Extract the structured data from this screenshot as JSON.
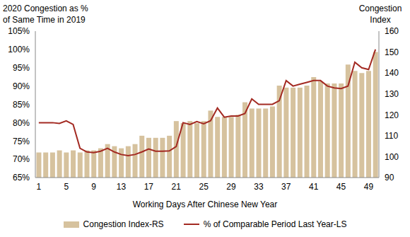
{
  "chart_data": {
    "type": "combo",
    "x_label": "Working Days After Chinese New Year",
    "y_label": "2020 Congestion as %\nof Same Time in 2019",
    "y2_label": "Congestion\nIndex",
    "categories": [
      "1",
      null,
      null,
      null,
      "5",
      null,
      null,
      null,
      "9",
      null,
      null,
      null,
      "13",
      null,
      null,
      null,
      "17",
      null,
      null,
      null,
      "21",
      null,
      null,
      null,
      "25",
      null,
      null,
      null,
      "29",
      null,
      null,
      null,
      "33",
      null,
      null,
      null,
      "37",
      null,
      null,
      null,
      "41",
      null,
      null,
      null,
      "45",
      null,
      null,
      null,
      "49",
      null
    ],
    "series": [
      {
        "name": "Congestion Index-RS",
        "type": "bar",
        "color": "#d6c29e",
        "axis": "y2",
        "values": [
          102,
          102,
          102,
          103,
          102,
          103,
          102,
          103,
          103,
          104,
          106,
          105,
          104,
          105,
          106,
          110,
          109,
          109,
          109,
          110,
          117,
          116,
          117,
          116,
          117,
          122,
          119,
          119,
          119,
          120,
          126,
          123,
          123,
          123,
          124,
          134,
          133,
          133,
          133,
          134,
          138,
          136,
          135,
          135,
          135,
          144,
          141,
          140,
          141,
          150
        ]
      },
      {
        "name": "% of Comparable Period Last Year-LS",
        "type": "line",
        "color": "#a32a22",
        "values": [
          80,
          80,
          80,
          79.8,
          80.5,
          79.5,
          73,
          72,
          71.8,
          72.2,
          73,
          72,
          71.3,
          71,
          71.3,
          72,
          72.8,
          72.2,
          72.2,
          72.3,
          73.5,
          80,
          79.5,
          80.3,
          79.7,
          80.5,
          84,
          81.5,
          81.8,
          81.8,
          82.5,
          86.5,
          85,
          85,
          85,
          86,
          91.5,
          90,
          90.5,
          91,
          91.5,
          91.5,
          90,
          89.5,
          89.3,
          90,
          96.5,
          95,
          94.5,
          100
        ]
      }
    ],
    "ylim": [
      65,
      105
    ],
    "yticks": [
      {
        "value": 65,
        "label": "65%"
      },
      {
        "value": 70,
        "label": "70%"
      },
      {
        "value": 75,
        "label": "75%"
      },
      {
        "value": 80,
        "label": "80%"
      },
      {
        "value": 85,
        "label": "85%"
      },
      {
        "value": 90,
        "label": "90%"
      },
      {
        "value": 95,
        "label": "95%"
      },
      {
        "value": 100,
        "label": "100%"
      },
      {
        "value": 105,
        "label": "105%"
      }
    ],
    "y2lim": [
      90,
      160
    ],
    "y2ticks": [
      90,
      100,
      110,
      120,
      130,
      140,
      150,
      160
    ],
    "legend": "bottom",
    "grid": false
  }
}
